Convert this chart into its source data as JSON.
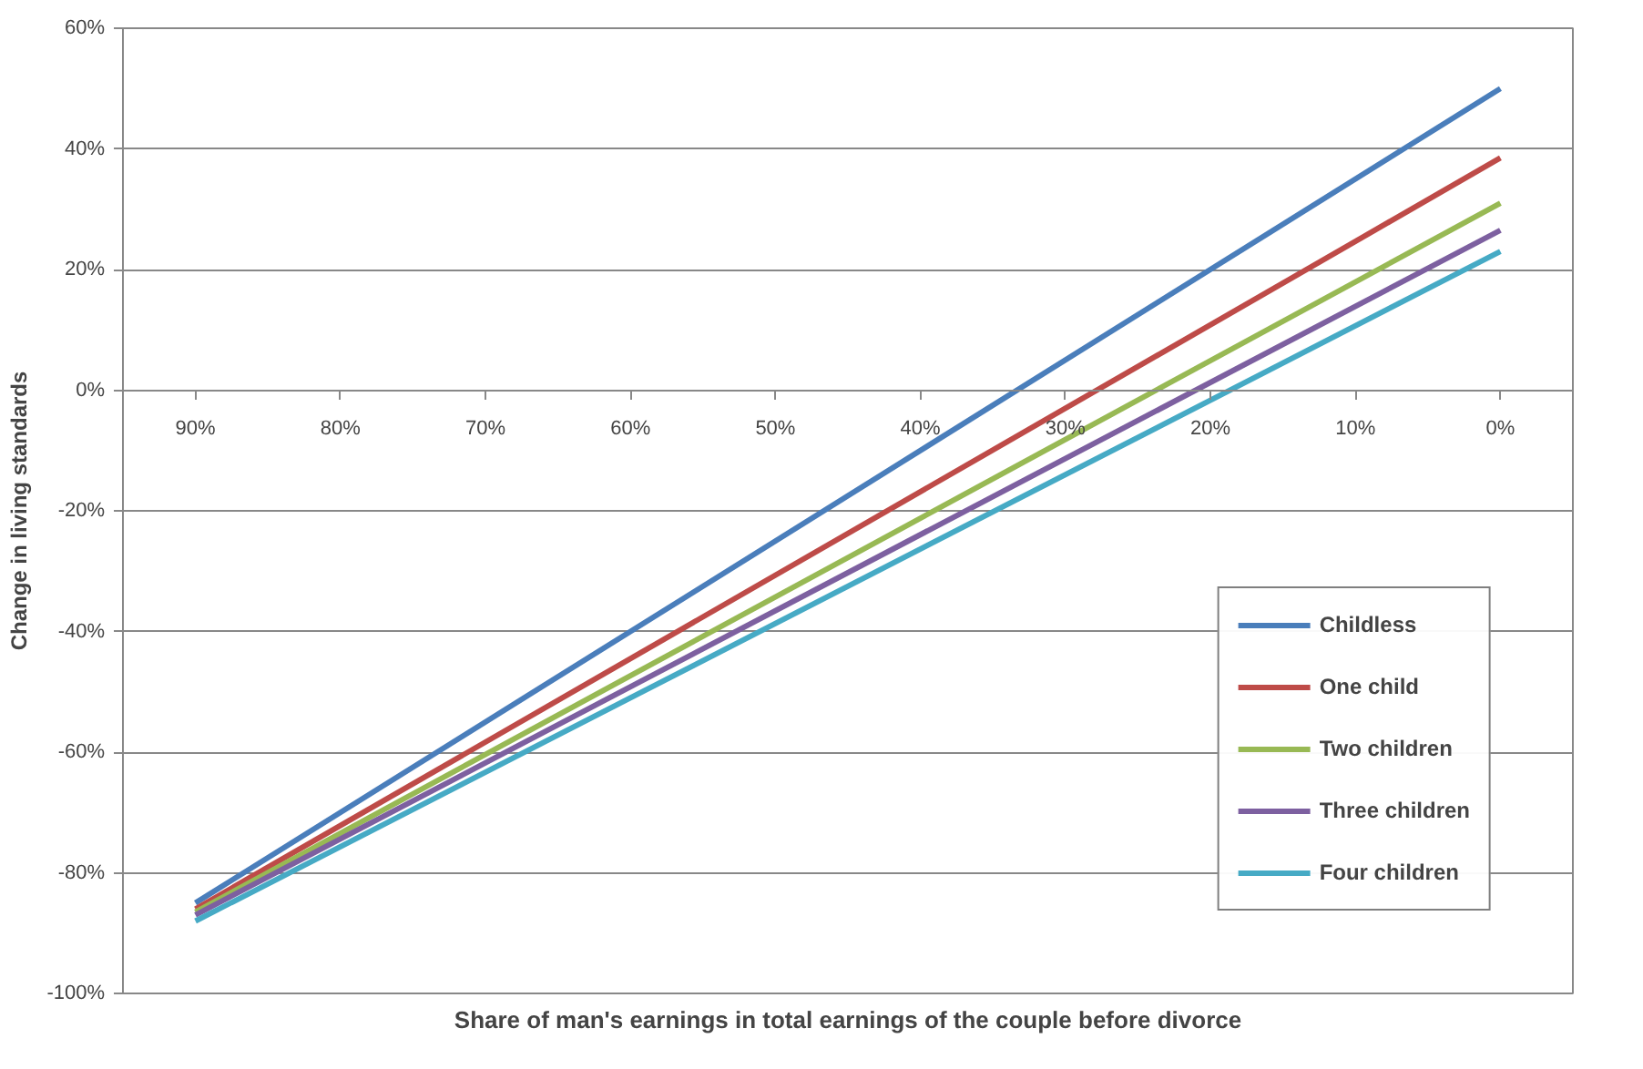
{
  "chart_data": {
    "type": "line",
    "xlabel": "Share of man's earnings in total earnings of the couple before divorce",
    "ylabel": "Change in living standards",
    "xlim": [
      95,
      -5
    ],
    "xticks": [
      {
        "value": 90,
        "label": "90%"
      },
      {
        "value": 80,
        "label": "80%"
      },
      {
        "value": 70,
        "label": "70%"
      },
      {
        "value": 60,
        "label": "60%"
      },
      {
        "value": 50,
        "label": "50%"
      },
      {
        "value": 40,
        "label": "40%"
      },
      {
        "value": 30,
        "label": "30%"
      },
      {
        "value": 20,
        "label": "20%"
      },
      {
        "value": 10,
        "label": "10%"
      },
      {
        "value": 0,
        "label": "0%"
      }
    ],
    "ylim": [
      -100,
      60
    ],
    "yticks": [
      {
        "value": -100,
        "label": "-100%"
      },
      {
        "value": -80,
        "label": "-80%"
      },
      {
        "value": -60,
        "label": "-60%"
      },
      {
        "value": -40,
        "label": "-40%"
      },
      {
        "value": -20,
        "label": "-20%"
      },
      {
        "value": 0,
        "label": "0%"
      },
      {
        "value": 20,
        "label": "20%"
      },
      {
        "value": 40,
        "label": "40%"
      },
      {
        "value": 60,
        "label": "60%"
      }
    ],
    "x": [
      90,
      0
    ],
    "grid": "y",
    "legend": "bottom right",
    "line_style": "solid",
    "marker": "none",
    "series": [
      {
        "name": "Childless",
        "color": "#4a7ebb",
        "values": [
          -85,
          50
        ]
      },
      {
        "name": "One child",
        "color": "#be4b48",
        "values": [
          -86,
          38.5
        ]
      },
      {
        "name": "Two children",
        "color": "#98b954",
        "values": [
          -86.5,
          31
        ]
      },
      {
        "name": "Three children",
        "color": "#7d60a0",
        "values": [
          -87,
          26.5
        ]
      },
      {
        "name": "Four children",
        "color": "#46aac5",
        "values": [
          -88,
          23
        ]
      }
    ]
  }
}
